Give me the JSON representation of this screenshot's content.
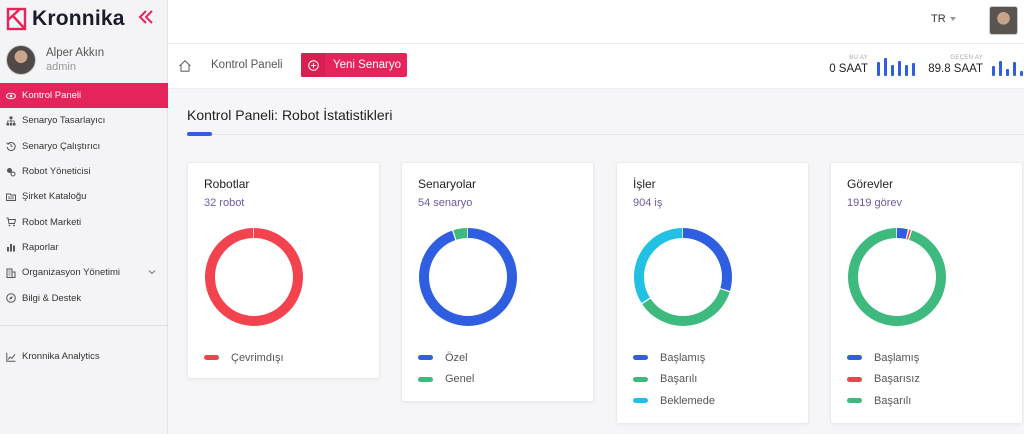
{
  "app": {
    "name": "Kronnika"
  },
  "user": {
    "name": "Alper Akkın",
    "role": "admin"
  },
  "sidebar": {
    "items": [
      {
        "label": "Kontrol Paneli",
        "active": true,
        "icon": "eye-icon"
      },
      {
        "label": "Senaryo Tasarlayıcı",
        "icon": "sitemap-icon"
      },
      {
        "label": "Senaryo Çalıştırıcı",
        "icon": "history-icon"
      },
      {
        "label": "Robot Yöneticisi",
        "icon": "robot-icon"
      },
      {
        "label": "Şirket Kataloğu",
        "icon": "folder-icon"
      },
      {
        "label": "Robot Marketi",
        "icon": "cart-icon"
      },
      {
        "label": "Raporlar",
        "icon": "chart-bar-icon"
      },
      {
        "label": "Organizasyon Yönetimi",
        "icon": "building-icon",
        "has_children": true
      },
      {
        "label": "Bilgi & Destek",
        "icon": "compass-icon"
      }
    ],
    "analytics": {
      "label": "Kronnika Analytics",
      "icon": "line-chart-icon"
    }
  },
  "topbar": {
    "language": "TR"
  },
  "subbar": {
    "breadcrumb": "Kontrol Paneli",
    "new_button": "Yeni Senaryo",
    "stats": [
      {
        "label": "BU AY",
        "value": "0 SAAT",
        "bars": [
          0.8,
          1.0,
          0.6,
          0.85,
          0.6,
          0.7
        ]
      },
      {
        "label": "GEÇEN AY",
        "value": "89.8 SAAT",
        "bars": [
          0.55,
          0.85,
          0.4,
          0.75,
          0.3,
          0.7,
          1.0
        ]
      }
    ]
  },
  "main": {
    "title": "Kontrol Paneli: Robot İstatistikleri"
  },
  "colors": {
    "accent": "#e5245c",
    "blue": "#2f5fe0",
    "green": "#3fba7f",
    "red": "#f2434e",
    "cyan": "#22c1e4"
  },
  "cards": [
    {
      "title": "Robotlar",
      "subtitle": "32 robot",
      "segments": [
        {
          "value": 100,
          "color": "#f2434e"
        }
      ],
      "legend": [
        {
          "label": "Çevrimdışı",
          "color": "#f2434e"
        }
      ]
    },
    {
      "title": "Senaryolar",
      "subtitle": "54 senaryo",
      "segments": [
        {
          "value": 95,
          "color": "#2f5fe0"
        },
        {
          "value": 5,
          "color": "#3fba7f"
        }
      ],
      "legend": [
        {
          "label": "Özel",
          "color": "#2f5fe0"
        },
        {
          "label": "Genel",
          "color": "#3fba7f"
        }
      ]
    },
    {
      "title": "İşler",
      "subtitle": "904 iş",
      "segments": [
        {
          "value": 30,
          "color": "#2f5fe0"
        },
        {
          "value": 36,
          "color": "#3fba7f"
        },
        {
          "value": 34,
          "color": "#22c1e4"
        }
      ],
      "legend": [
        {
          "label": "Başlamış",
          "color": "#2f5fe0"
        },
        {
          "label": "Başarılı",
          "color": "#3fba7f"
        },
        {
          "label": "Beklemede",
          "color": "#22c1e4"
        }
      ]
    },
    {
      "title": "Görevler",
      "subtitle": "1919 görev",
      "segments": [
        {
          "value": 4,
          "color": "#2f5fe0"
        },
        {
          "value": 1,
          "color": "#f2434e"
        },
        {
          "value": 95,
          "color": "#3fba7f"
        }
      ],
      "legend": [
        {
          "label": "Başlamış",
          "color": "#2f5fe0"
        },
        {
          "label": "Başarısız",
          "color": "#f2434e"
        },
        {
          "label": "Başarılı",
          "color": "#3fba7f"
        }
      ]
    }
  ]
}
